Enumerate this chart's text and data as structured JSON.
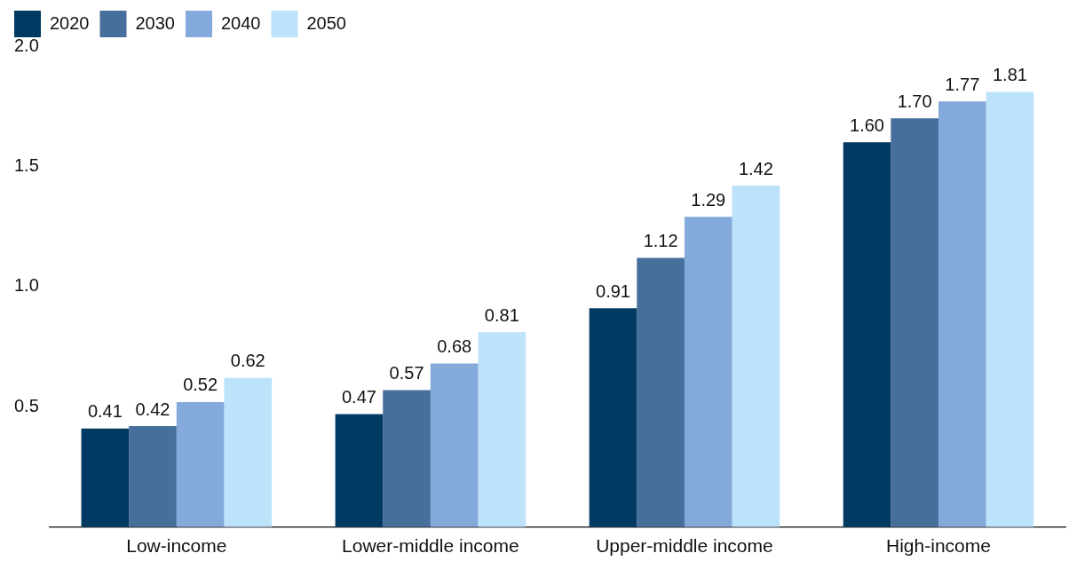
{
  "chart_data": {
    "type": "bar",
    "categories": [
      "Low-income",
      "Lower-middle income",
      "Upper-middle income",
      "High-income"
    ],
    "series": [
      {
        "name": "2020",
        "color": "#003a63",
        "values": [
          0.41,
          0.47,
          0.91,
          1.6
        ],
        "value_labels": [
          "0.41",
          "0.47",
          "0.91",
          "1.60"
        ]
      },
      {
        "name": "2030",
        "color": "#476f9c",
        "values": [
          0.42,
          0.57,
          1.12,
          1.7
        ],
        "value_labels": [
          "0.42",
          "0.57",
          "1.12",
          "1.70"
        ]
      },
      {
        "name": "2040",
        "color": "#84a9db",
        "values": [
          0.52,
          0.68,
          1.29,
          1.77
        ],
        "value_labels": [
          "0.52",
          "0.68",
          "1.29",
          "1.77"
        ]
      },
      {
        "name": "2050",
        "color": "#bde3fa",
        "values": [
          0.62,
          0.81,
          1.42,
          1.81
        ],
        "value_labels": [
          "0.62",
          "0.81",
          "1.42",
          "1.81"
        ]
      }
    ],
    "ylim": [
      0,
      2.0
    ],
    "yticks": [
      {
        "value": 0.5,
        "label": "0.5"
      },
      {
        "value": 1.0,
        "label": "1.0"
      },
      {
        "value": 1.5,
        "label": "1.5"
      },
      {
        "value": 2.0,
        "label": "2.0"
      }
    ],
    "grid": false,
    "legend": "top left"
  }
}
